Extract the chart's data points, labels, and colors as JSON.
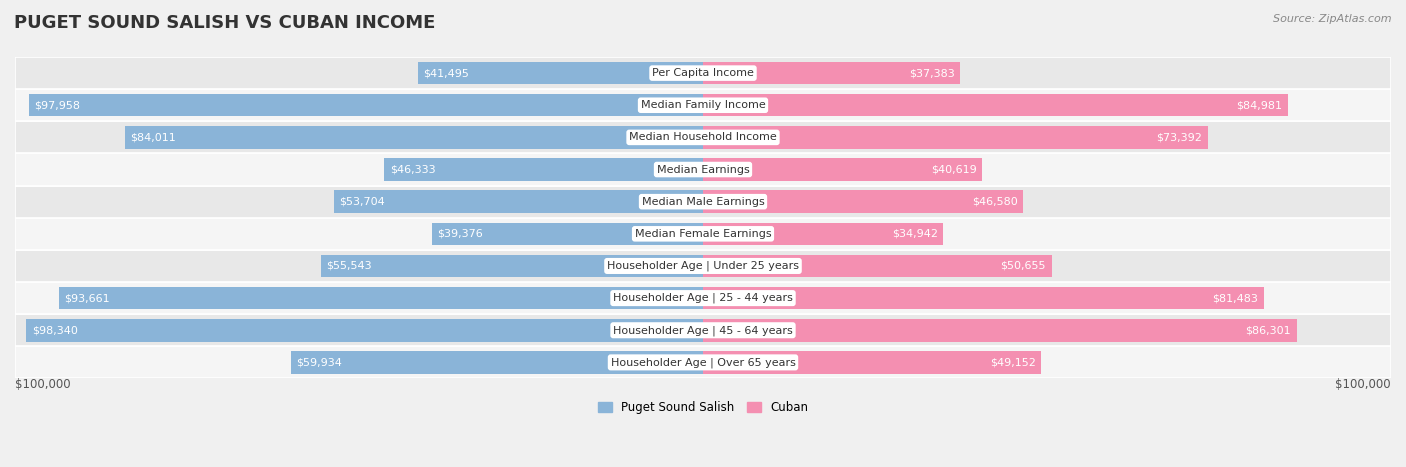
{
  "title": "PUGET SOUND SALISH VS CUBAN INCOME",
  "source": "Source: ZipAtlas.com",
  "max_value": 100000,
  "categories": [
    "Per Capita Income",
    "Median Family Income",
    "Median Household Income",
    "Median Earnings",
    "Median Male Earnings",
    "Median Female Earnings",
    "Householder Age | Under 25 years",
    "Householder Age | 25 - 44 years",
    "Householder Age | 45 - 64 years",
    "Householder Age | Over 65 years"
  ],
  "salish_values": [
    41495,
    97958,
    84011,
    46333,
    53704,
    39376,
    55543,
    93661,
    98340,
    59934
  ],
  "cuban_values": [
    37383,
    84981,
    73392,
    40619,
    46580,
    34942,
    50655,
    81483,
    86301,
    49152
  ],
  "salish_color": "#8ab4d8",
  "cuban_color": "#f48fb1",
  "salish_label": "Puget Sound Salish",
  "cuban_label": "Cuban",
  "bg_color": "#f0f0f0",
  "row_bg_even": "#e8e8e8",
  "row_bg_odd": "#f5f5f5",
  "bar_height": 0.7,
  "title_fontsize": 13,
  "cat_fontsize": 8,
  "value_fontsize": 8,
  "axis_label_fontsize": 8.5,
  "legend_fontsize": 8.5,
  "white_text_threshold": 0.15
}
